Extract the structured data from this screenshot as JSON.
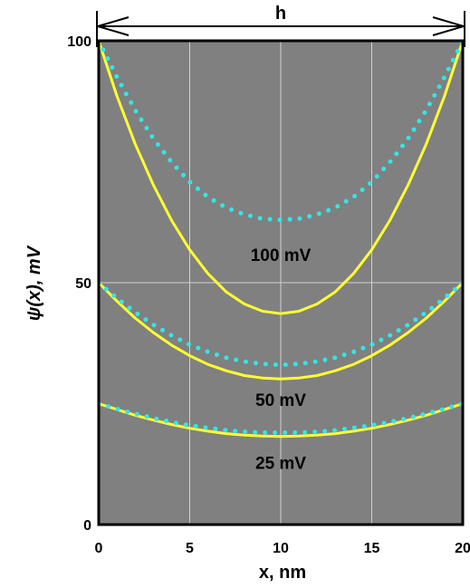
{
  "chart_data": {
    "type": "line",
    "xlabel": "x, nm",
    "ylabel": "ψ(x), mV",
    "xlim": [
      0,
      20
    ],
    "ylim": [
      0,
      100
    ],
    "x_ticks": [
      "0",
      "5",
      "10",
      "15",
      "20"
    ],
    "y_ticks": [
      "0",
      "50",
      "100"
    ],
    "grid": true,
    "background_color": "#808080",
    "solid_color": "#ffff33",
    "dotted_color": "#33e6e6",
    "width_label": "h",
    "x": [
      0,
      1,
      2,
      3,
      4,
      5,
      6,
      7,
      8,
      9,
      10,
      11,
      12,
      13,
      14,
      15,
      16,
      17,
      18,
      19,
      20
    ],
    "series": [
      {
        "style": "solid",
        "values": [
          100,
          88.6,
          78.7,
          70.2,
          62.9,
          56.8,
          51.9,
          48.1,
          45.6,
          44.1,
          43.6,
          44.1,
          45.6,
          48.1,
          51.9,
          56.8,
          62.9,
          70.2,
          78.7,
          88.6,
          100
        ]
      },
      {
        "style": "dotted",
        "values": [
          100,
          92.5,
          85.7,
          79.8,
          74.9,
          70.8,
          67.7,
          65.5,
          64.1,
          63.2,
          63.0,
          63.2,
          64.1,
          65.5,
          67.7,
          70.8,
          74.9,
          79.8,
          85.7,
          92.5,
          100
        ]
      },
      {
        "style": "solid",
        "values": [
          50,
          46.2,
          42.7,
          39.7,
          37.1,
          34.9,
          33.1,
          31.8,
          30.8,
          30.3,
          30.1,
          30.3,
          30.8,
          31.8,
          33.1,
          34.9,
          37.1,
          39.7,
          42.7,
          46.2,
          50
        ]
      },
      {
        "style": "dotted",
        "values": [
          50,
          46.8,
          43.9,
          41.3,
          39.1,
          37.2,
          35.7,
          34.5,
          33.7,
          33.2,
          33.0,
          33.2,
          33.7,
          34.5,
          35.7,
          37.2,
          39.1,
          41.3,
          43.9,
          46.8,
          50
        ]
      },
      {
        "style": "solid",
        "values": [
          25,
          23.8,
          22.6,
          21.6,
          20.7,
          19.9,
          19.3,
          18.8,
          18.5,
          18.3,
          18.2,
          18.3,
          18.5,
          18.8,
          19.3,
          19.9,
          20.7,
          21.6,
          22.6,
          23.8,
          25
        ]
      },
      {
        "style": "dotted",
        "values": [
          25,
          23.9,
          22.9,
          22.0,
          21.2,
          20.5,
          20.0,
          19.5,
          19.2,
          19.0,
          19.0,
          19.0,
          19.2,
          19.5,
          20.0,
          20.5,
          21.2,
          22.0,
          22.9,
          23.9,
          25
        ]
      }
    ],
    "annotations": [
      {
        "text": "100 mV",
        "x": 10,
        "y": 54.5
      },
      {
        "text": "50 mV",
        "x": 10,
        "y": 24.5
      },
      {
        "text": "25 mV",
        "x": 10,
        "y": 11.5
      }
    ]
  }
}
